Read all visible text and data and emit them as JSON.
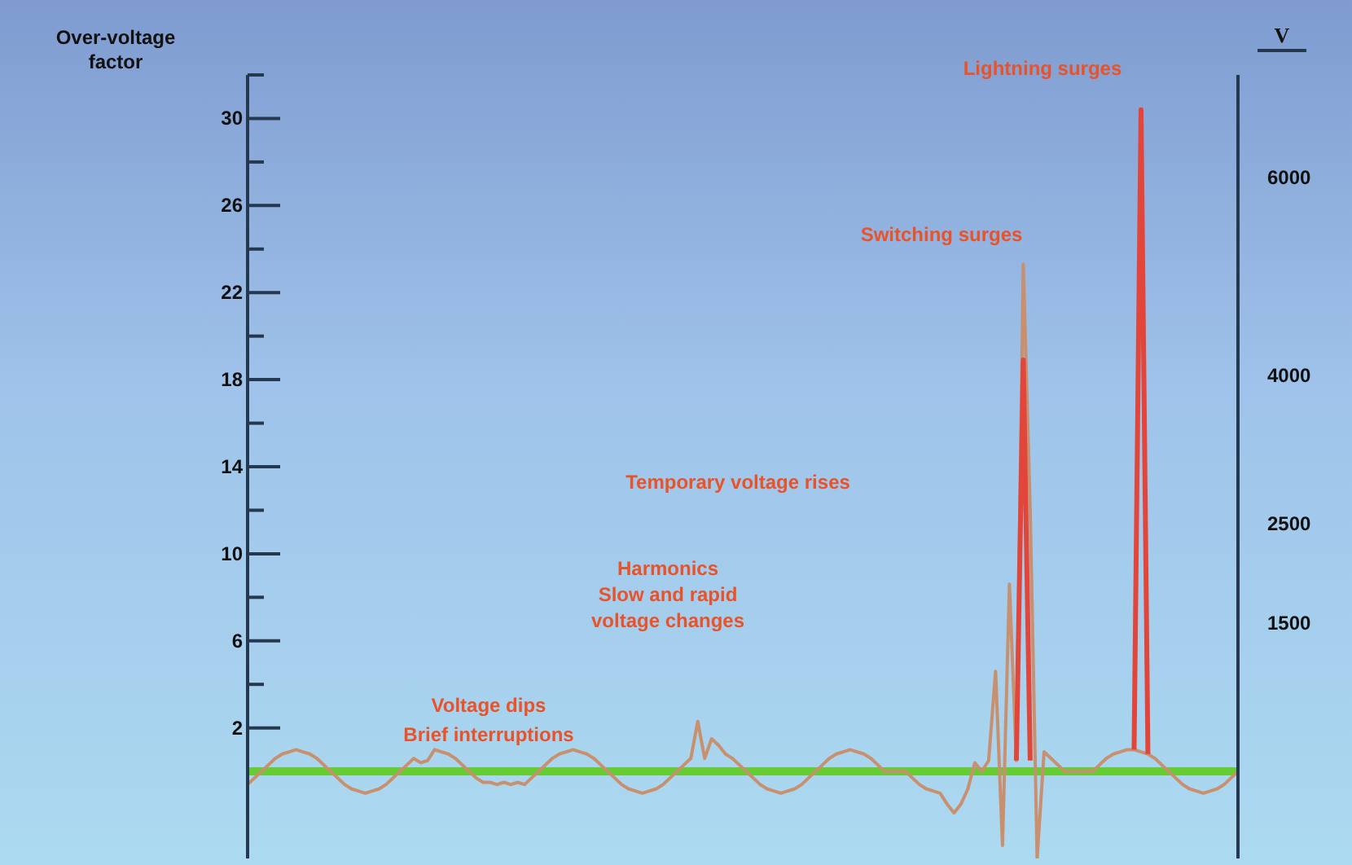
{
  "chart_data": {
    "type": "line",
    "ylabel": "Over-voltage factor",
    "y2label": "V",
    "categories": [
      null,
      null,
      null,
      null,
      null,
      null,
      null,
      null,
      null,
      null,
      null,
      null,
      null,
      null,
      null,
      null,
      null,
      null,
      null,
      null,
      null,
      null,
      null,
      null,
      null,
      null,
      null,
      null,
      null,
      null,
      null,
      null,
      null,
      null,
      null,
      null,
      null,
      null,
      null,
      null,
      null,
      null,
      null,
      null,
      null,
      null,
      null,
      null,
      null,
      null,
      null,
      null,
      null,
      null,
      null,
      null,
      null,
      null,
      null,
      null,
      null,
      null,
      null,
      null,
      null,
      null,
      null,
      null,
      null,
      null,
      null,
      null,
      null,
      null,
      null,
      null,
      null,
      null,
      null,
      null,
      null,
      null,
      null,
      null,
      null,
      null,
      null,
      null,
      null,
      null,
      null,
      null,
      null,
      null,
      null,
      null,
      null,
      null,
      null,
      null,
      null,
      null,
      null,
      null,
      null,
      null,
      null,
      null,
      null,
      null,
      null,
      null,
      null,
      null,
      null,
      null,
      null,
      null,
      null,
      null,
      null,
      null,
      null,
      null,
      null,
      null,
      null,
      null,
      null,
      null,
      null,
      null,
      null,
      null,
      null,
      null,
      null,
      null,
      null,
      null,
      null,
      null,
      null,
      null
    ],
    "series": [
      {
        "color": "#c8906e",
        "values": [
          -0.6,
          -0.3,
          0,
          0.3,
          0.6,
          0.8,
          0.9,
          1.0,
          0.9,
          0.8,
          0.6,
          0.3,
          0,
          -0.3,
          -0.6,
          -0.8,
          -0.9,
          -1.0,
          -0.9,
          -0.8,
          -0.6,
          -0.3,
          0,
          0.3,
          0.6,
          0.4,
          0.5,
          1.0,
          0.9,
          0.8,
          0.6,
          0.3,
          0,
          -0.3,
          -0.5,
          -0.5,
          -0.6,
          -0.5,
          -0.6,
          -0.5,
          -0.6,
          -0.3,
          0,
          0.3,
          0.6,
          0.8,
          0.9,
          1.0,
          0.9,
          0.8,
          0.6,
          0.3,
          0,
          -0.3,
          -0.6,
          -0.8,
          -0.9,
          -1.0,
          -0.9,
          -0.8,
          -0.6,
          -0.3,
          0,
          0.3,
          0.6,
          2.3,
          0.6,
          1.5,
          1.2,
          0.8,
          0.6,
          0.3,
          0,
          -0.3,
          -0.6,
          -0.8,
          -0.9,
          -1.0,
          -0.9,
          -0.8,
          -0.6,
          -0.3,
          0,
          0.3,
          0.6,
          0.8,
          0.9,
          1.0,
          0.9,
          0.8,
          0.6,
          0.3,
          0,
          0,
          0,
          0,
          -0.3,
          -0.6,
          -0.8,
          -0.9,
          -1.0,
          -1.5,
          -1.9,
          -1.5,
          -0.8,
          0.4,
          0,
          0.5,
          4.6,
          -3.4,
          8.6,
          0.5,
          23.3,
          12,
          -4.0,
          0.9,
          0.6,
          0.3,
          0,
          0,
          0,
          0,
          0,
          0.3,
          0.6,
          0.8,
          0.9,
          1.0,
          1.0,
          0.9,
          0.8,
          0.6,
          0.3,
          0,
          -0.3,
          -0.6,
          -0.8,
          -0.9,
          -1.0,
          -0.9,
          -0.8,
          -0.6,
          -0.3,
          0
        ]
      },
      {
        "color": "#e2463a",
        "values": [
          null,
          null,
          null,
          null,
          null,
          null,
          null,
          null,
          null,
          null,
          null,
          null,
          null,
          null,
          null,
          null,
          null,
          null,
          null,
          null,
          null,
          null,
          null,
          null,
          null,
          null,
          null,
          null,
          null,
          null,
          null,
          null,
          null,
          null,
          null,
          null,
          null,
          null,
          null,
          null,
          null,
          null,
          null,
          null,
          null,
          null,
          null,
          null,
          null,
          null,
          null,
          null,
          null,
          null,
          null,
          null,
          null,
          null,
          null,
          null,
          null,
          null,
          null,
          null,
          null,
          null,
          null,
          null,
          null,
          null,
          null,
          null,
          null,
          null,
          null,
          null,
          null,
          null,
          null,
          null,
          null,
          null,
          null,
          null,
          null,
          null,
          null,
          null,
          null,
          null,
          null,
          null,
          null,
          null,
          null,
          null,
          null,
          null,
          null,
          null,
          null,
          null,
          null,
          null,
          null,
          null,
          null,
          null,
          null,
          null,
          null,
          0.5,
          18.9,
          0.5,
          null,
          null,
          null,
          null,
          null,
          null,
          null,
          null,
          null,
          null,
          null,
          null,
          null,
          null,
          1.0,
          30.4,
          0.8,
          null,
          null,
          null,
          null,
          null,
          null,
          null,
          null,
          null,
          null,
          null,
          null,
          null
        ]
      }
    ],
    "ylim": [
      -4,
      32
    ],
    "yticks": [
      2,
      {
        "value": 4,
        "label": null
      },
      6,
      {
        "value": 8,
        "label": null
      },
      10,
      {
        "value": 12,
        "label": null
      },
      14,
      {
        "value": 16,
        "label": null
      },
      18,
      {
        "value": 20,
        "label": null
      },
      22,
      {
        "value": 24,
        "label": null
      },
      26,
      {
        "value": 28,
        "label": null
      },
      30,
      {
        "value": 32,
        "label": null
      }
    ],
    "y2lim": [
      -880,
      7040
    ],
    "y2ticks": [
      1500,
      2500,
      4000,
      6000
    ],
    "ref_lines": [
      {
        "axis": "y",
        "value": 0,
        "color": "#66cc33"
      }
    ],
    "annotations": [
      "Lightning surges",
      "Switching surges",
      "Temporary voltage rises",
      "Harmonics",
      "Slow and rapid voltage changes",
      "Voltage dips",
      "Brief interruptions"
    ]
  }
}
